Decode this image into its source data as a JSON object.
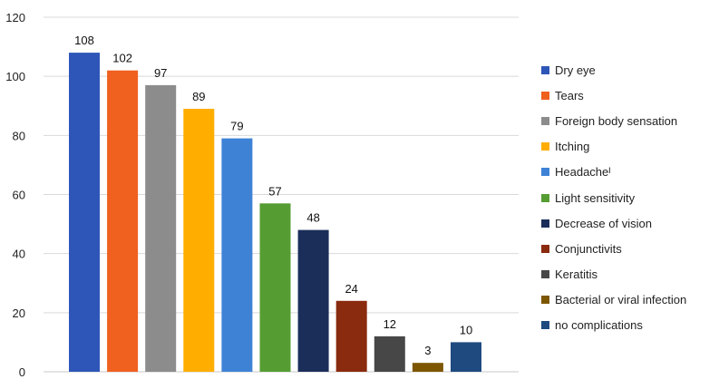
{
  "chart_data": {
    "type": "bar",
    "categories": [
      "Dry eye",
      "Tears",
      "Foreign body sensation",
      "Itching",
      "Headacheᴵ",
      "Light sensitivity",
      "Decrease of vision",
      "Conjunctivits",
      "Keratitis",
      "Bacterial or viral infection",
      "no complications"
    ],
    "values": [
      108,
      102,
      97,
      89,
      79,
      57,
      48,
      24,
      12,
      3,
      10
    ],
    "colors": [
      "#2e56b8",
      "#f0601f",
      "#8c8c8c",
      "#ffae00",
      "#3e82d6",
      "#559d33",
      "#1b2e5a",
      "#8a2a0e",
      "#474747",
      "#7d5600",
      "#1f4a80"
    ],
    "ylim": [
      0,
      120
    ],
    "yticks": [
      0,
      20,
      40,
      60,
      80,
      100,
      120
    ],
    "title": "",
    "xlabel": "",
    "ylabel": "",
    "grid": true,
    "legend_position": "right"
  }
}
